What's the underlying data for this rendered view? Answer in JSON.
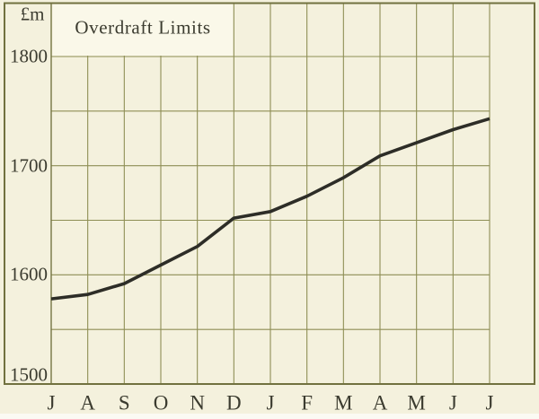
{
  "chart_data": {
    "type": "line",
    "title": "Overdraft Limits",
    "ylabel": "£m",
    "x_tick_labels": [
      "J",
      "A",
      "S",
      "O",
      "N",
      "D",
      "J",
      "F",
      "M",
      "A",
      "M",
      "J",
      "J"
    ],
    "y_ticks": [
      1800,
      1700,
      1600,
      1500
    ],
    "y_tick_labels": [
      "1800",
      "1700",
      "1600",
      "1500"
    ],
    "y_gridline_values": [
      1800,
      1750,
      1700,
      1650,
      1600,
      1550,
      1500
    ],
    "ylim": [
      1500,
      1825
    ],
    "grid": "on",
    "legend": "none",
    "series": [
      {
        "name": "Overdraft Limits",
        "values": [
          1578,
          1582,
          1592,
          1609,
          1626,
          1652,
          1658,
          1672,
          1689,
          1709,
          1721,
          1733,
          1743
        ]
      }
    ]
  },
  "colors": {
    "paper": "#f4f1dd",
    "title_panel": "#faf8e9",
    "grid": "#8e8e55",
    "border": "#71713f",
    "line": "#2d2d27",
    "text": "#3b3b2f"
  }
}
